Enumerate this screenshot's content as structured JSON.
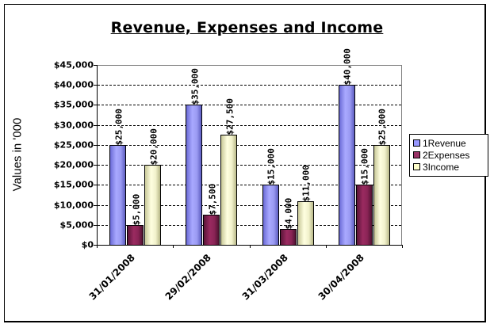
{
  "chart_data": {
    "type": "bar",
    "title": "Revenue, Expenses and Income",
    "xlabel": "",
    "ylabel": "Values in '000",
    "ylim": [
      0,
      45000
    ],
    "yticks": [
      "$0",
      "$5,000",
      "$10,000",
      "$15,000",
      "$20,000",
      "$25,000",
      "$30,000",
      "$35,000",
      "$40,000",
      "$45,000"
    ],
    "grid": true,
    "legend_position": "right",
    "categories": [
      "31/01/2008",
      "29/02/2008",
      "31/03/2008",
      "30/04/2008"
    ],
    "series": [
      {
        "name": "1Revenue",
        "color": "#9999ff",
        "values": [
          25000,
          35000,
          15000,
          40000
        ],
        "labels": [
          "$25,000",
          "$35,000",
          "$15,000",
          "$40,000"
        ]
      },
      {
        "name": "2Expenses",
        "color": "#993366",
        "values": [
          5000,
          7500,
          4000,
          15000
        ],
        "labels": [
          "$5,000",
          "$7,500",
          "$4,000",
          "$15,000"
        ]
      },
      {
        "name": "3Income",
        "color": "#ffffcc",
        "values": [
          20000,
          27500,
          11000,
          25000
        ],
        "labels": [
          "$20,000",
          "$27,500",
          "$11,000",
          "$25,000"
        ]
      }
    ]
  }
}
